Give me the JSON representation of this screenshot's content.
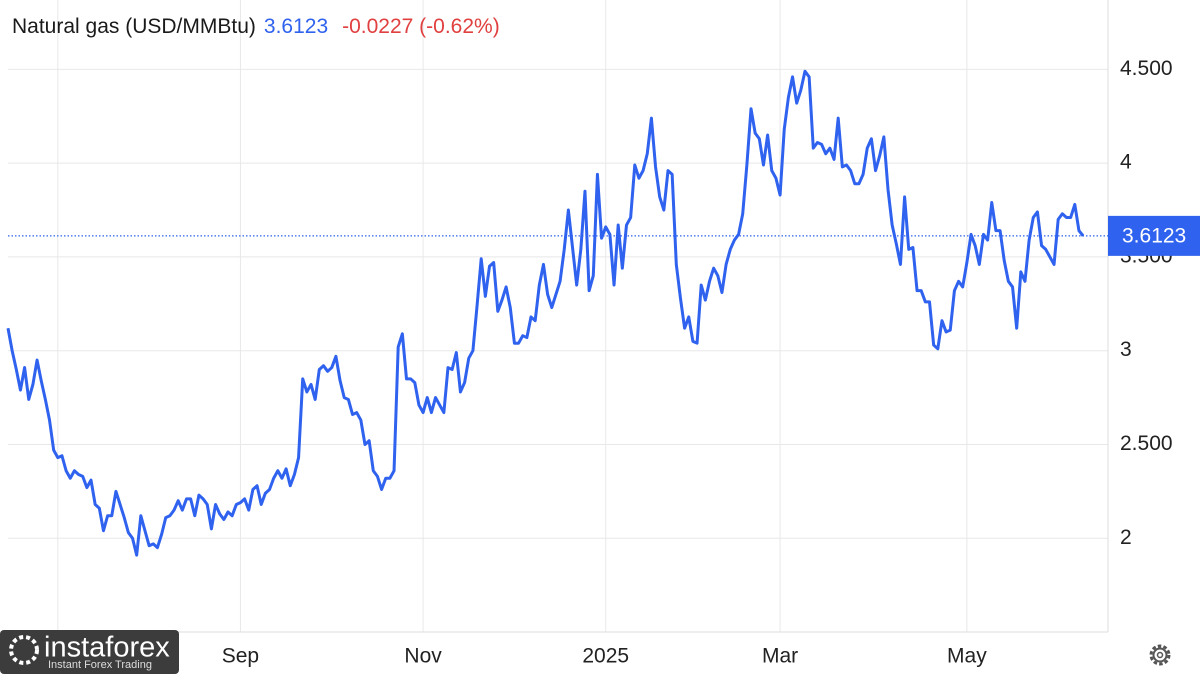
{
  "chart_data": {
    "type": "line",
    "title": "Natural gas (USD/MMBtu)",
    "last_value": 3.6123,
    "change": "-0.0227 (-0.62%)",
    "color": "#2f62ee",
    "values": [
      3.12,
      3.0,
      2.9,
      2.79,
      2.91,
      2.74,
      2.82,
      2.95,
      2.84,
      2.74,
      2.63,
      2.47,
      2.43,
      2.44,
      2.36,
      2.32,
      2.36,
      2.34,
      2.33,
      2.27,
      2.31,
      2.18,
      2.16,
      2.04,
      2.12,
      2.12,
      2.25,
      2.18,
      2.11,
      2.03,
      2.0,
      1.91,
      2.12,
      2.04,
      1.96,
      1.97,
      1.95,
      2.02,
      2.11,
      2.12,
      2.15,
      2.2,
      2.15,
      2.21,
      2.21,
      2.12,
      2.23,
      2.21,
      2.18,
      2.05,
      2.18,
      2.13,
      2.1,
      2.14,
      2.12,
      2.18,
      2.19,
      2.21,
      2.15,
      2.26,
      2.28,
      2.18,
      2.24,
      2.26,
      2.32,
      2.36,
      2.32,
      2.37,
      2.28,
      2.34,
      2.43,
      2.85,
      2.78,
      2.82,
      2.74,
      2.9,
      2.92,
      2.89,
      2.91,
      2.97,
      2.84,
      2.75,
      2.74,
      2.66,
      2.67,
      2.63,
      2.5,
      2.52,
      2.36,
      2.33,
      2.26,
      2.32,
      2.32,
      2.36,
      3.02,
      3.09,
      2.85,
      2.85,
      2.83,
      2.71,
      2.67,
      2.75,
      2.67,
      2.75,
      2.71,
      2.67,
      2.91,
      2.9,
      2.99,
      2.78,
      2.83,
      2.96,
      3.0,
      3.24,
      3.49,
      3.29,
      3.45,
      3.47,
      3.21,
      3.27,
      3.34,
      3.23,
      3.04,
      3.04,
      3.08,
      3.07,
      3.18,
      3.16,
      3.35,
      3.46,
      3.3,
      3.23,
      3.3,
      3.37,
      3.54,
      3.75,
      3.55,
      3.35,
      3.54,
      3.85,
      3.32,
      3.4,
      3.94,
      3.6,
      3.66,
      3.62,
      3.35,
      3.67,
      3.44,
      3.67,
      3.71,
      3.99,
      3.92,
      3.96,
      4.05,
      4.24,
      3.98,
      3.82,
      3.75,
      3.96,
      3.94,
      3.46,
      3.28,
      3.12,
      3.18,
      3.05,
      3.04,
      3.35,
      3.27,
      3.37,
      3.44,
      3.4,
      3.31,
      3.46,
      3.54,
      3.59,
      3.62,
      3.73,
      3.99,
      4.29,
      4.16,
      4.13,
      3.99,
      4.15,
      3.96,
      3.92,
      3.83,
      4.18,
      4.35,
      4.46,
      4.32,
      4.39,
      4.49,
      4.46,
      4.08,
      4.11,
      4.1,
      4.05,
      4.08,
      4.02,
      4.24,
      3.98,
      3.99,
      3.96,
      3.89,
      3.89,
      3.94,
      4.08,
      4.13,
      3.96,
      4.04,
      4.14,
      3.86,
      3.67,
      3.57,
      3.46,
      3.82,
      3.54,
      3.55,
      3.32,
      3.32,
      3.26,
      3.26,
      3.03,
      3.01,
      3.16,
      3.1,
      3.11,
      3.32,
      3.37,
      3.34,
      3.47,
      3.62,
      3.56,
      3.46,
      3.62,
      3.59,
      3.79,
      3.64,
      3.64,
      3.48,
      3.37,
      3.34,
      3.12,
      3.42,
      3.37,
      3.59,
      3.71,
      3.74,
      3.56,
      3.54,
      3.5,
      3.46,
      3.7,
      3.73,
      3.71,
      3.71,
      3.78,
      3.64,
      3.6123
    ],
    "xlim": [
      0,
      265
    ],
    "xticks": [
      {
        "value": 12,
        "label": null
      },
      {
        "value": 56,
        "label": "Sep"
      },
      {
        "value": 100,
        "label": "Nov"
      },
      {
        "value": 144,
        "label": "2025"
      },
      {
        "value": 186,
        "label": "Mar"
      },
      {
        "value": 231,
        "label": "May"
      }
    ],
    "ylim": [
      1.5,
      4.87
    ],
    "yticks": [
      2,
      {
        "value": 2.5,
        "label": "2.500"
      },
      3,
      {
        "value": 3.5,
        "label": "3.500"
      },
      4,
      {
        "value": 4.5,
        "label": "4.500"
      }
    ],
    "grid": true
  },
  "watermark": {
    "brand": "instaforex",
    "tagline": "Instant Forex Trading"
  }
}
